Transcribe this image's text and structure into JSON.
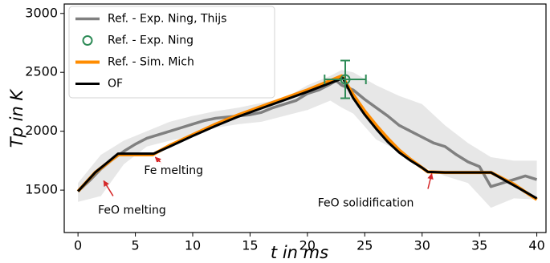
{
  "chart_data": {
    "type": "line",
    "xlabel": "t in ms",
    "ylabel": "Tp in K",
    "xlim": [
      -1.2,
      40.8
    ],
    "ylim": [
      1140,
      3080
    ],
    "xticks": [
      0,
      5,
      10,
      15,
      20,
      25,
      30,
      35,
      40
    ],
    "yticks": [
      1500,
      2000,
      2500,
      3000
    ],
    "legend": "upper left",
    "band": {
      "color": "#e3e3e3",
      "x": [
        0,
        2,
        4,
        6,
        8,
        10,
        12,
        14,
        16,
        18,
        20,
        22,
        23,
        24,
        26,
        28,
        30,
        32,
        34,
        36,
        38,
        40
      ],
      "upper": [
        1560,
        1800,
        1920,
        2000,
        2080,
        2130,
        2170,
        2200,
        2240,
        2280,
        2390,
        2470,
        2520,
        2500,
        2390,
        2300,
        2230,
        2050,
        1900,
        1780,
        1750,
        1750
      ],
      "lower": [
        1400,
        1450,
        1720,
        1870,
        1920,
        1960,
        2030,
        2060,
        2080,
        2130,
        2180,
        2260,
        2200,
        2150,
        1930,
        1830,
        1700,
        1620,
        1560,
        1350,
        1430,
        1420
      ]
    },
    "series": [
      {
        "name": "Ref. - Exp. Ning, Thijs",
        "color": "#808080",
        "x": [
          0,
          1,
          2,
          3,
          4,
          5,
          6,
          7,
          8,
          9,
          10,
          11,
          12,
          13,
          14,
          15,
          16,
          17,
          18,
          19,
          20,
          21,
          22,
          22.5,
          23,
          24,
          25,
          26,
          27,
          28,
          29,
          30,
          31,
          32,
          33,
          34,
          35,
          36,
          37,
          38,
          39,
          40
        ],
        "values": [
          1490,
          1580,
          1680,
          1760,
          1830,
          1890,
          1940,
          1970,
          2000,
          2030,
          2060,
          2090,
          2110,
          2120,
          2130,
          2140,
          2160,
          2200,
          2230,
          2260,
          2320,
          2350,
          2400,
          2430,
          2390,
          2350,
          2270,
          2200,
          2130,
          2050,
          2000,
          1950,
          1900,
          1870,
          1800,
          1740,
          1700,
          1530,
          1560,
          1590,
          1620,
          1590
        ]
      },
      {
        "name": "Ref. - Sim. Mich",
        "color": "#ff8c00",
        "x": [
          0,
          1.5,
          3.5,
          6.5,
          8,
          10,
          12,
          14,
          16,
          18,
          20,
          22,
          23,
          24,
          25,
          26,
          27,
          28,
          29,
          30,
          30.5,
          32,
          36,
          38,
          40
        ],
        "values": [
          1490,
          1650,
          1800,
          1800,
          1880,
          1970,
          2060,
          2140,
          2210,
          2280,
          2350,
          2430,
          2470,
          2310,
          2170,
          2050,
          1940,
          1840,
          1760,
          1690,
          1655,
          1650,
          1650,
          1550,
          1420
        ]
      },
      {
        "name": "OF",
        "color": "#000000",
        "x": [
          0,
          1.5,
          3.5,
          6.6,
          8,
          10,
          12,
          14,
          16,
          18,
          20,
          22,
          23.1,
          24,
          25,
          26,
          27,
          28,
          29,
          30,
          30.5,
          32,
          36,
          38,
          40
        ],
        "values": [
          1490,
          1650,
          1810,
          1810,
          1870,
          1960,
          2045,
          2125,
          2195,
          2265,
          2335,
          2410,
          2450,
          2280,
          2140,
          2020,
          1910,
          1820,
          1750,
          1690,
          1655,
          1650,
          1650,
          1540,
          1430
        ]
      }
    ],
    "points": [
      {
        "name": "Ref. - Exp. Ning",
        "color": "#2e8b57",
        "x": 23.3,
        "y": 2440,
        "xerr": 1.8,
        "yerr": 160
      }
    ],
    "annotations": [
      {
        "text": "FeO melting",
        "x": 2.1,
        "y": 1600,
        "color": "#d62728"
      },
      {
        "text": "Fe melting",
        "x": 6.6,
        "y": 1800,
        "color": "#d62728"
      },
      {
        "text": "FeO solidification",
        "x": 30.7,
        "y": 1660,
        "color": "#d62728"
      }
    ]
  }
}
